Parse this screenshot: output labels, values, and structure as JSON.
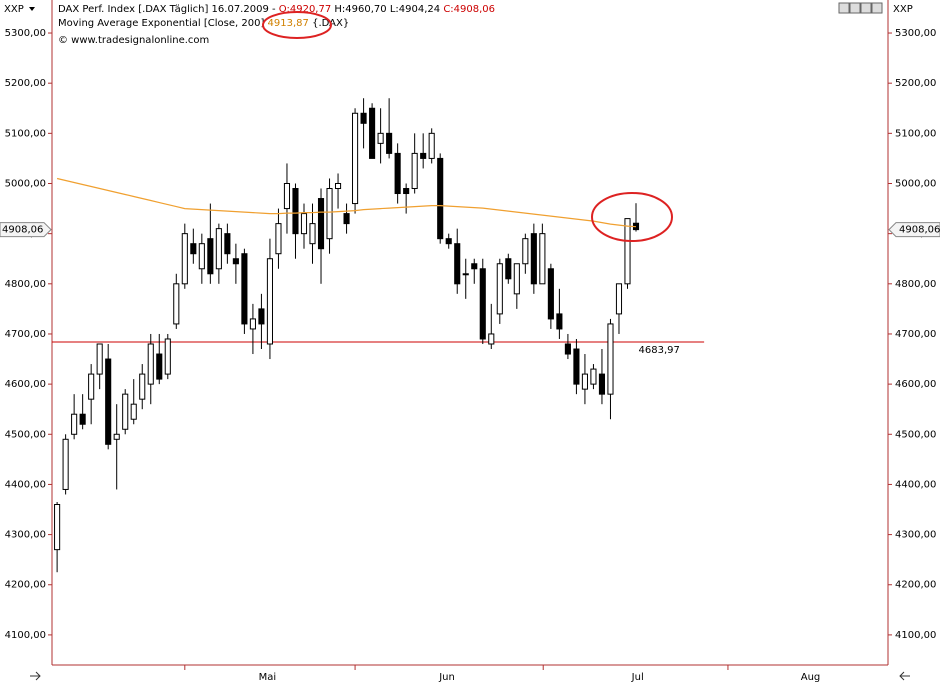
{
  "header": {
    "menu_left": "XXP",
    "menu_right": "XXP",
    "instrument": "DAX Perf. Index [.DAX  Täglich] 16.07.2009 -",
    "open": "O:4920,77",
    "high": "H:4960,70",
    "low": "L:4904,24",
    "close": "C:4908,06",
    "indicator": "Moving Average Exponential [Close, 200]",
    "indicator_value": "4913,87",
    "indicator_symbol": "{.DAX}",
    "copyright": "© www.tradesignalonline.com"
  },
  "chart_data": {
    "type": "candlestick",
    "open": [
      4270,
      4390,
      4500,
      4540,
      4570,
      4620,
      4650,
      4490,
      4510,
      4530,
      4570,
      4600,
      4660,
      4620,
      4720,
      4800,
      4880,
      4830,
      4890,
      4830,
      4900,
      4850,
      4860,
      4710,
      4750,
      4680,
      4860,
      4950,
      4990,
      4900,
      4880,
      4970,
      4890,
      4990,
      4940,
      4960,
      5140,
      5150,
      5080,
      5100,
      5060,
      4990,
      4990,
      5060,
      5050,
      5050,
      4890,
      4880,
      4820,
      4840,
      4830,
      4680,
      4740,
      4850,
      4780,
      4840,
      4900,
      4800,
      4830,
      4740,
      4680,
      4670,
      4590,
      4600,
      4620,
      4580,
      4740,
      4800,
      4920.77
    ],
    "high": [
      4365,
      4500,
      4580,
      4580,
      4640,
      4680,
      4680,
      4560,
      4590,
      4610,
      4640,
      4700,
      4700,
      4700,
      4820,
      4920,
      4910,
      4900,
      4960,
      4920,
      4920,
      4880,
      4870,
      4760,
      4780,
      4890,
      4950,
      5040,
      5000,
      4960,
      4960,
      4990,
      5010,
      5020,
      4960,
      5150,
      5170,
      5160,
      5150,
      5170,
      5080,
      5000,
      5100,
      5100,
      5110,
      5060,
      4900,
      4910,
      4850,
      4850,
      4850,
      4760,
      4850,
      4860,
      4840,
      4900,
      4920,
      4920,
      4840,
      4790,
      4700,
      4690,
      4660,
      4640,
      4670,
      4730,
      4800,
      4930,
      4960.7
    ],
    "low": [
      4225,
      4380,
      4490,
      4510,
      4520,
      4590,
      4470,
      4390,
      4500,
      4520,
      4550,
      4560,
      4600,
      4610,
      4710,
      4790,
      4840,
      4800,
      4800,
      4800,
      4840,
      4800,
      4700,
      4660,
      4670,
      4650,
      4830,
      4900,
      4850,
      4870,
      4840,
      4800,
      4860,
      4950,
      4900,
      4940,
      5070,
      5050,
      5040,
      5050,
      4960,
      4940,
      4980,
      5030,
      5040,
      4880,
      4870,
      4780,
      4770,
      4800,
      4680,
      4670,
      4720,
      4800,
      4750,
      4820,
      4780,
      4800,
      4710,
      4690,
      4650,
      4580,
      4560,
      4590,
      4560,
      4530,
      4700,
      4790,
      4904.24
    ],
    "close": [
      4360,
      4490,
      4540,
      4520,
      4620,
      4680,
      4480,
      4500,
      4580,
      4560,
      4620,
      4680,
      4610,
      4690,
      4800,
      4900,
      4860,
      4880,
      4820,
      4910,
      4860,
      4840,
      4720,
      4730,
      4720,
      4850,
      4920,
      5000,
      4900,
      4940,
      4920,
      4870,
      4990,
      5000,
      4920,
      5140,
      5120,
      5050,
      5100,
      5060,
      4980,
      4980,
      5060,
      5050,
      5100,
      4890,
      4880,
      4800,
      4820,
      4830,
      4690,
      4700,
      4840,
      4810,
      4840,
      4890,
      4800,
      4900,
      4730,
      4710,
      4660,
      4600,
      4620,
      4630,
      4580,
      4720,
      4800,
      4930,
      4908.06
    ],
    "ema": {
      "name": "Moving Average Exponential [Close, 200]",
      "color": "#f0a030",
      "values": [
        5010,
        5006,
        5002,
        4998,
        4994,
        4990,
        4986,
        4982,
        4978,
        4974,
        4970,
        4966,
        4962,
        4958,
        4954,
        4950,
        4949,
        4948,
        4947,
        4946,
        4945,
        4944,
        4943,
        4942,
        4941,
        4940,
        4940,
        4941,
        4941,
        4942,
        4942,
        4943,
        4943,
        4944,
        4945,
        4946,
        4948,
        4949,
        4950,
        4951,
        4952,
        4953,
        4954,
        4955,
        4956,
        4956,
        4955,
        4954,
        4953,
        4952,
        4951,
        4949,
        4947,
        4945,
        4943,
        4941,
        4939,
        4937,
        4935,
        4933,
        4931,
        4929,
        4927,
        4925,
        4922,
        4919,
        4917,
        4915,
        4913.87
      ]
    },
    "support": {
      "value": 4683.97,
      "label": "4683,97",
      "color": "#cc0000"
    },
    "last_tag": {
      "value": 4908.06,
      "label": "4908,06"
    },
    "xlim": [
      -0.6,
      97.6
    ],
    "xticks": [
      {
        "value": 24.7,
        "label": "Mai"
      },
      {
        "value": 45.8,
        "label": "Jun"
      },
      {
        "value": 68.2,
        "label": "Jul"
      },
      {
        "value": 88.5,
        "label": "Aug"
      }
    ],
    "xminor": [
      15.0,
      35.0,
      57.1,
      78.8
    ],
    "ylim": [
      4040,
      5316
    ],
    "yticks": [
      {
        "value": 4100,
        "label": "4100,00"
      },
      {
        "value": 4200,
        "label": "4200,00"
      },
      {
        "value": 4300,
        "label": "4300,00"
      },
      {
        "value": 4400,
        "label": "4400,00"
      },
      {
        "value": 4500,
        "label": "4500,00"
      },
      {
        "value": 4600,
        "label": "4600,00"
      },
      {
        "value": 4700,
        "label": "4700,00"
      },
      {
        "value": 4800,
        "label": "4800,00"
      },
      {
        "value": 4900,
        "label": "4900,00"
      },
      {
        "value": 5000,
        "label": "5000,00"
      },
      {
        "value": 5100,
        "label": "5100,00"
      },
      {
        "value": 5200,
        "label": "5200,00"
      },
      {
        "value": 5300,
        "label": "5300,00"
      }
    ],
    "up_color": "#ffffff",
    "down_color": "#000000"
  }
}
